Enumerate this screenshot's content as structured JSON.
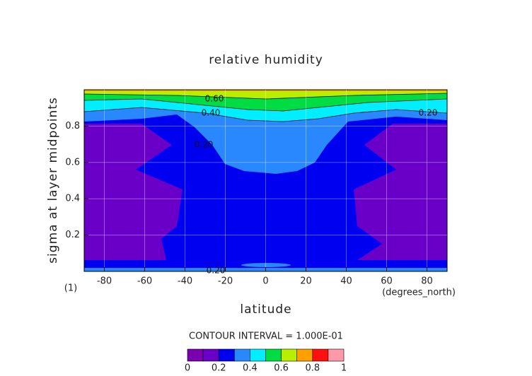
{
  "chart_data": {
    "type": "contour",
    "title": "relative humidity",
    "xlabel": "latitude",
    "ylabel": "sigma at layer midpoints",
    "y_unit": "(1)",
    "x_unit": "(degrees_north)",
    "contour_interval": "CONTOUR INTERVAL = 1.000E-01",
    "xlim": [
      -90,
      90
    ],
    "xticks": [
      -80,
      -60,
      -40,
      -20,
      0,
      20,
      40,
      60,
      80
    ],
    "ylim": [
      0,
      1
    ],
    "yticks": [
      0.2,
      0.4,
      0.6,
      0.8
    ],
    "grid": true,
    "levels": [
      0,
      0.1,
      0.2,
      0.3,
      0.4,
      0.5,
      0.6,
      0.7,
      0.8,
      0.9,
      1
    ],
    "colors": [
      "#7a00b0",
      "#6a00c8",
      "#0000f0",
      "#2a88ff",
      "#00eeff",
      "#00dd44",
      "#b8ee00",
      "#ffa000",
      "#ff1010",
      "#ff99aa"
    ],
    "colorbar_ticks": [
      0,
      0.2,
      0.4,
      0.6,
      0.8,
      1
    ],
    "contour_labels": [
      "0.60",
      "0.40",
      "0.20",
      "0.20",
      "0.20"
    ]
  }
}
